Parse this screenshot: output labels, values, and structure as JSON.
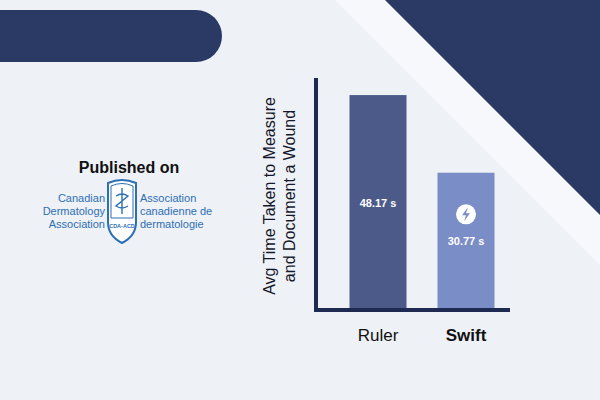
{
  "chart_data": {
    "type": "bar",
    "y_label": "Avg Time Taken to Measure and Document a Wound",
    "categories": [
      "Ruler",
      "Swift"
    ],
    "values": [
      48.17,
      30.77
    ],
    "value_labels": [
      "48.17 s",
      "30.77 s"
    ],
    "colors": [
      "#4b5a89",
      "#7b8dc6"
    ],
    "ylim": [
      0,
      52
    ],
    "yticks": [],
    "grid": false,
    "data_labels": true,
    "tick_labels": "x"
  },
  "publication": {
    "heading": "Published on",
    "name_en": [
      "Canadian",
      "Dermatology",
      "Association"
    ],
    "name_fr": [
      "Association",
      "canadienne de",
      "dermatologie"
    ],
    "emblem": "CDA-ACD"
  }
}
